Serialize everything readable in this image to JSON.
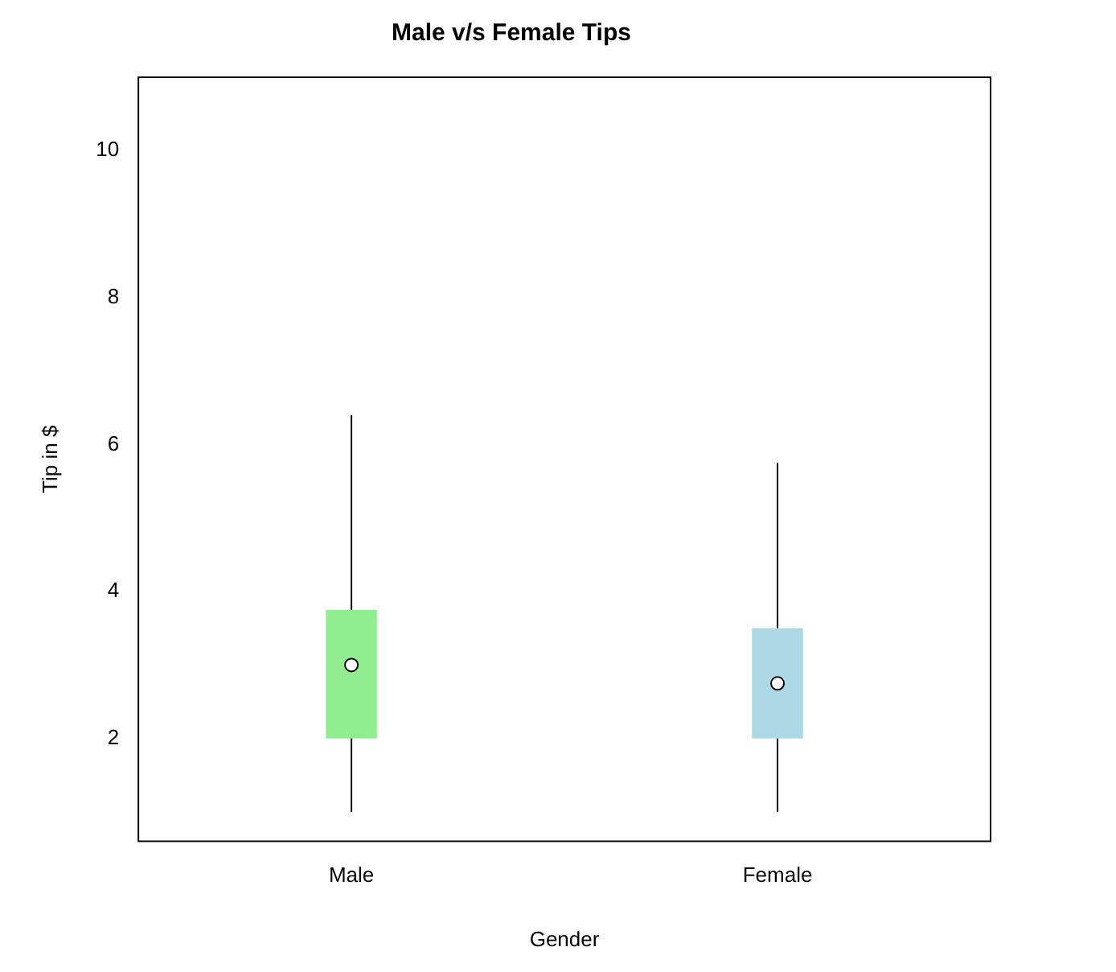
{
  "chart_data": {
    "type": "box",
    "title": "Male v/s Female Tips",
    "xlabel": "Gender",
    "ylabel": "Tip in $",
    "categories": [
      "Male",
      "Female"
    ],
    "colors": [
      "#90ee90",
      "#add8e6"
    ],
    "boxes": [
      {
        "low": 1,
        "q1": 2,
        "median": 3,
        "q3": 3.75,
        "high": 6.4
      },
      {
        "low": 1,
        "q1": 2,
        "median": 2.75,
        "q3": 3.5,
        "high": 5.75
      }
    ],
    "ylim": [
      0.6,
      11
    ],
    "yticks": [
      2,
      4,
      6,
      8,
      10
    ],
    "grid": false,
    "legend": false
  }
}
